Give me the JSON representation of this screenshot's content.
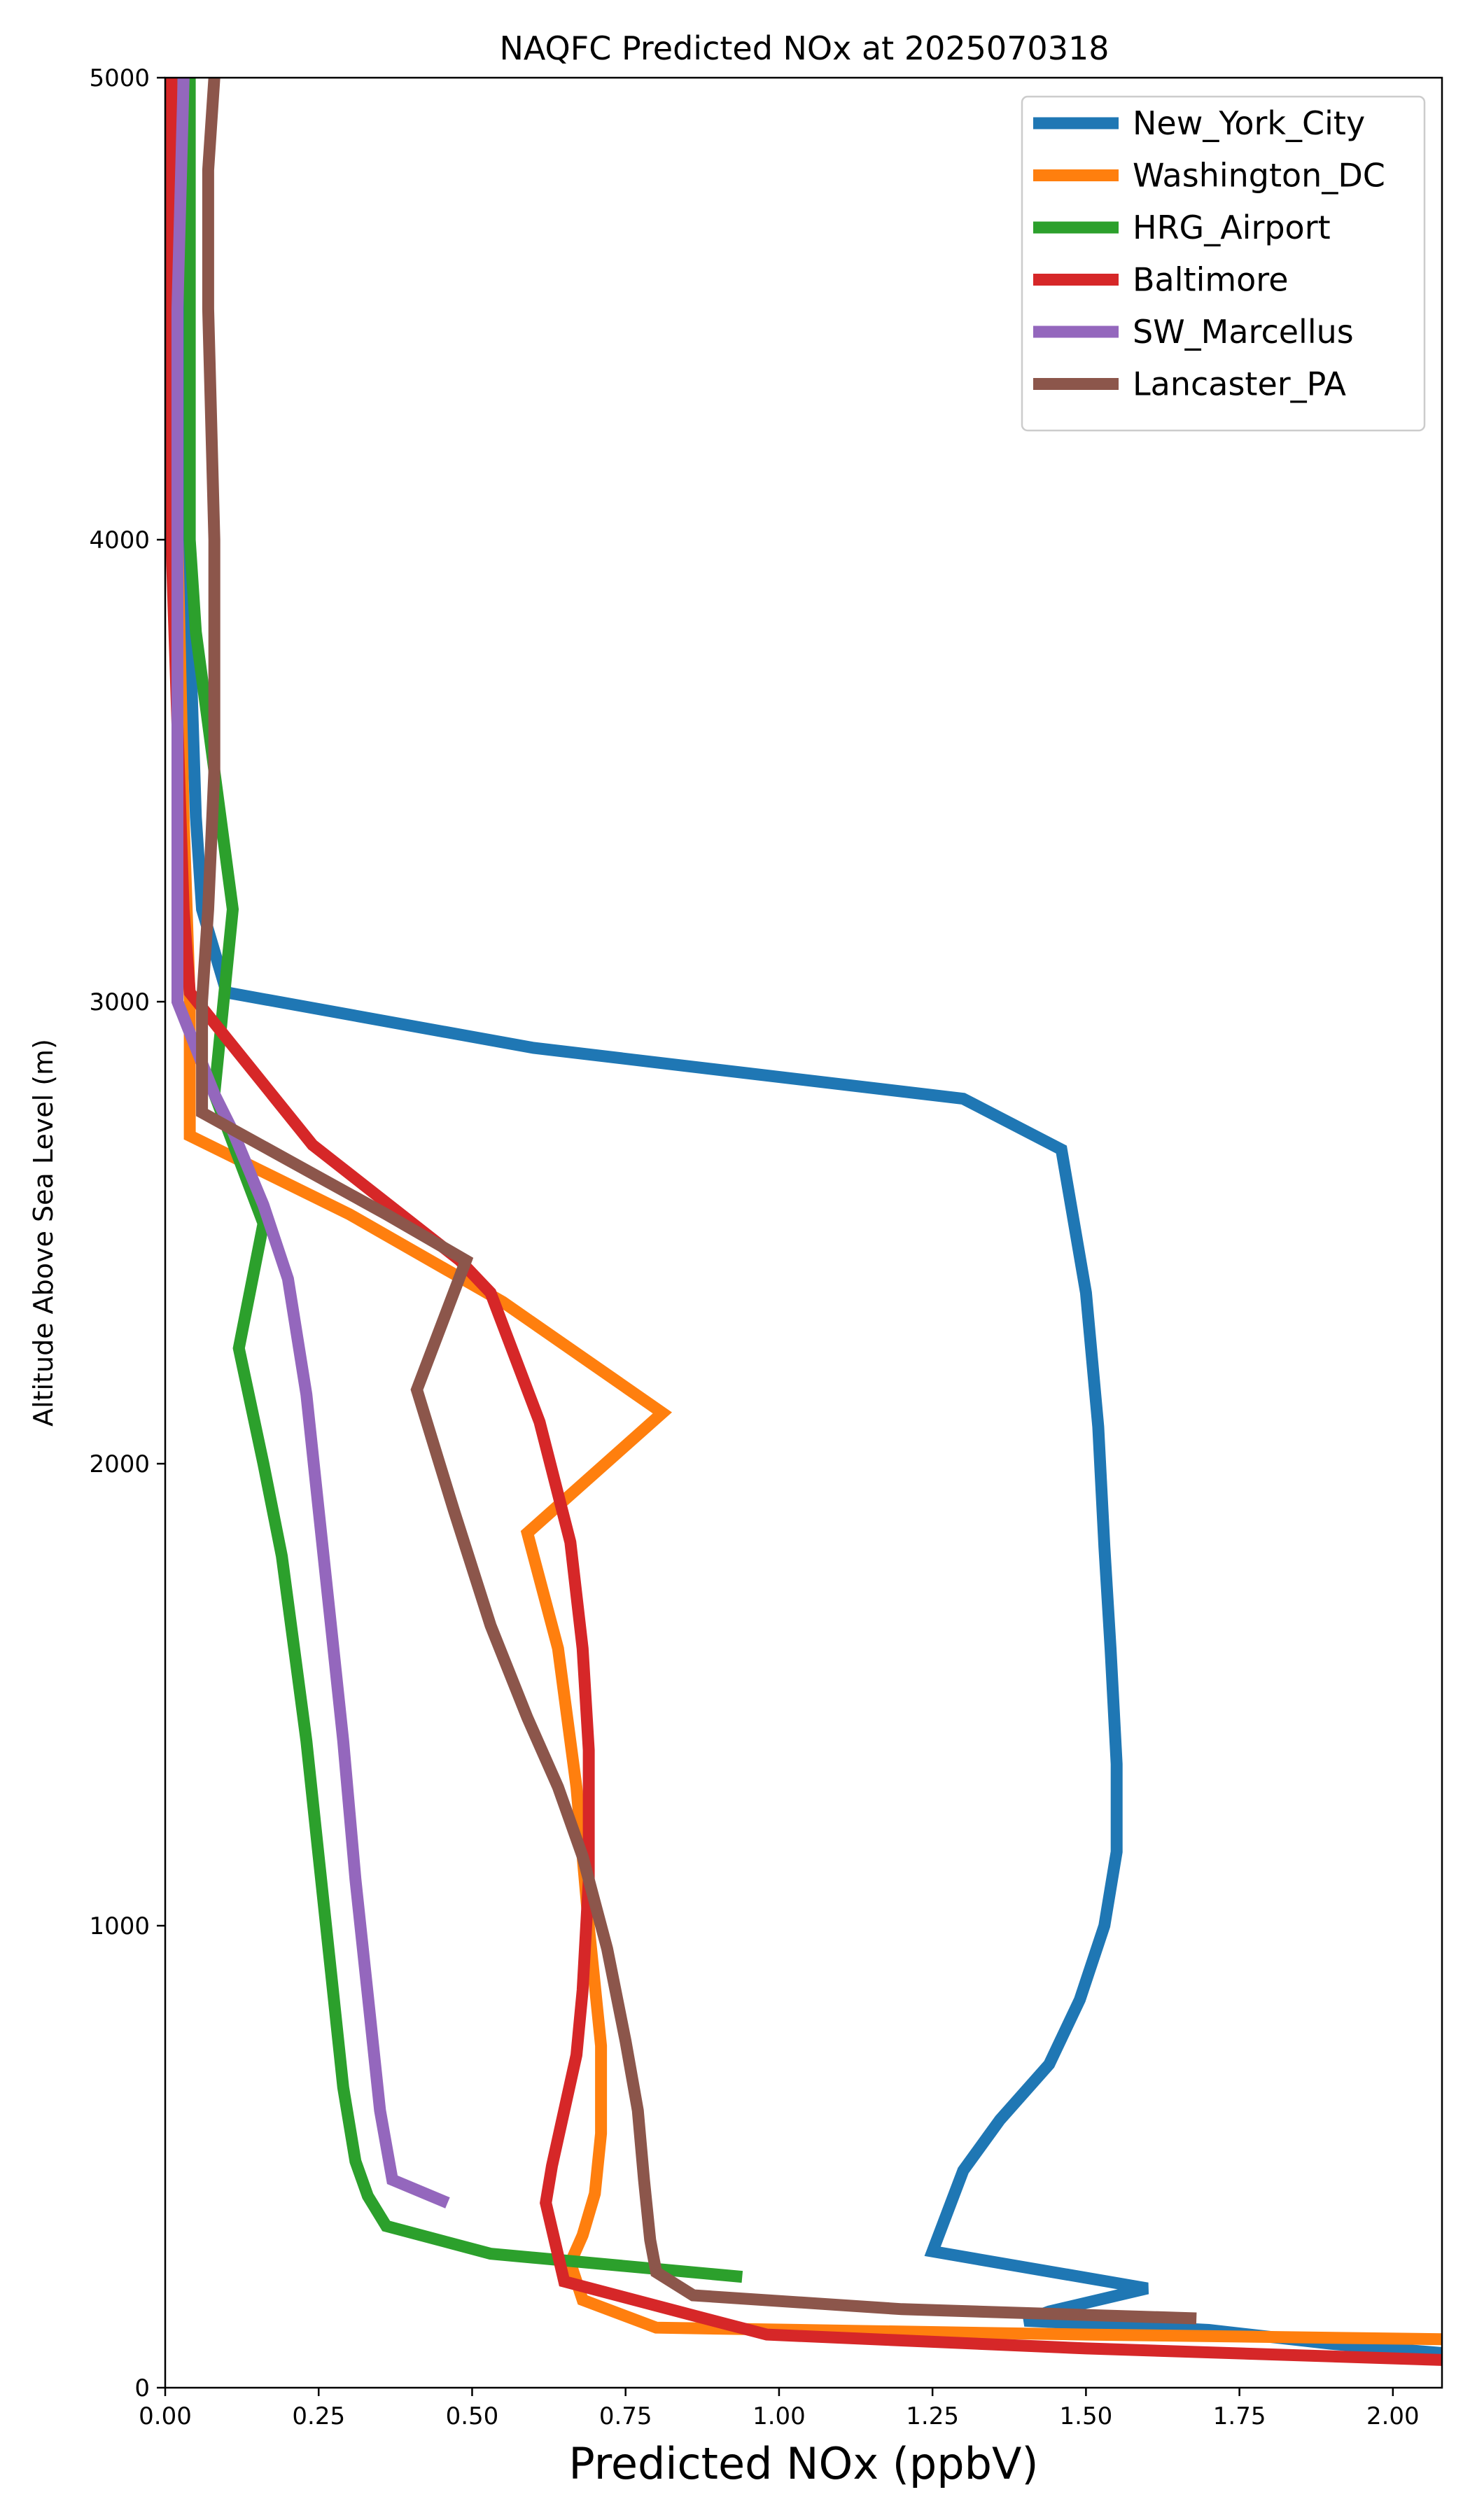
{
  "chart_data": {
    "type": "line",
    "title": "NAQFC Predicted NOx at 2025070318",
    "xlabel": "Predicted NOx (ppbV)",
    "ylabel": "Altitude Above Sea Level (m)",
    "xlim": [
      0,
      2.08
    ],
    "ylim": [
      0,
      5000
    ],
    "xticks": [
      0.0,
      0.25,
      0.5,
      0.75,
      1.0,
      1.25,
      1.5,
      1.75,
      2.0
    ],
    "xtick_labels": [
      "0.00",
      "0.25",
      "0.50",
      "0.75",
      "1.00",
      "1.25",
      "1.50",
      "1.75",
      "2.00"
    ],
    "yticks": [
      0,
      1000,
      2000,
      3000,
      4000,
      5000
    ],
    "ytick_labels": [
      "0",
      "1000",
      "2000",
      "3000",
      "4000",
      "5000"
    ],
    "grid": false,
    "legend_position": "top-right",
    "series": [
      {
        "name": "New_York_City",
        "color": "#1f77b4",
        "points": [
          [
            2.08,
            75
          ],
          [
            1.9,
            95
          ],
          [
            1.7,
            125
          ],
          [
            1.4,
            145
          ],
          [
            1.44,
            165
          ],
          [
            1.6,
            215
          ],
          [
            1.25,
            295
          ],
          [
            1.3,
            470
          ],
          [
            1.36,
            580
          ],
          [
            1.44,
            700
          ],
          [
            1.49,
            840
          ],
          [
            1.53,
            1000
          ],
          [
            1.55,
            1160
          ],
          [
            1.55,
            1350
          ],
          [
            1.54,
            1600
          ],
          [
            1.53,
            1820
          ],
          [
            1.52,
            2080
          ],
          [
            1.5,
            2370
          ],
          [
            1.46,
            2680
          ],
          [
            1.3,
            2790
          ],
          [
            0.6,
            2900
          ],
          [
            0.1,
            3020
          ],
          [
            0.06,
            3200
          ],
          [
            0.05,
            3400
          ],
          [
            0.04,
            3800
          ],
          [
            0.03,
            4200
          ],
          [
            0.02,
            4600
          ],
          [
            0.02,
            5000
          ]
        ]
      },
      {
        "name": "Washington_DC",
        "color": "#ff7f0e",
        "points": [
          [
            2.08,
            105
          ],
          [
            1.5,
            115
          ],
          [
            0.8,
            130
          ],
          [
            0.68,
            190
          ],
          [
            0.66,
            270
          ],
          [
            0.68,
            330
          ],
          [
            0.7,
            420
          ],
          [
            0.71,
            550
          ],
          [
            0.71,
            740
          ],
          [
            0.69,
            1000
          ],
          [
            0.67,
            1300
          ],
          [
            0.64,
            1600
          ],
          [
            0.59,
            1850
          ],
          [
            0.81,
            2110
          ],
          [
            0.55,
            2350
          ],
          [
            0.3,
            2540
          ],
          [
            0.04,
            2710
          ],
          [
            0.04,
            3000
          ],
          [
            0.03,
            3400
          ],
          [
            0.02,
            4000
          ],
          [
            0.01,
            4500
          ],
          [
            0.01,
            5000
          ]
        ]
      },
      {
        "name": "HRG_Airport",
        "color": "#2ca02c",
        "points": [
          [
            0.94,
            240
          ],
          [
            0.53,
            290
          ],
          [
            0.36,
            350
          ],
          [
            0.33,
            415
          ],
          [
            0.31,
            490
          ],
          [
            0.29,
            650
          ],
          [
            0.27,
            900
          ],
          [
            0.25,
            1150
          ],
          [
            0.23,
            1400
          ],
          [
            0.21,
            1600
          ],
          [
            0.19,
            1800
          ],
          [
            0.16,
            2000
          ],
          [
            0.12,
            2250
          ],
          [
            0.16,
            2520
          ],
          [
            0.08,
            2800
          ],
          [
            0.11,
            3200
          ],
          [
            0.08,
            3500
          ],
          [
            0.05,
            3800
          ],
          [
            0.04,
            4000
          ],
          [
            0.04,
            4500
          ],
          [
            0.04,
            5000
          ]
        ]
      },
      {
        "name": "Baltimore",
        "color": "#d62728",
        "points": [
          [
            2.08,
            60
          ],
          [
            1.5,
            85
          ],
          [
            0.98,
            115
          ],
          [
            0.85,
            160
          ],
          [
            0.65,
            230
          ],
          [
            0.62,
            400
          ],
          [
            0.63,
            480
          ],
          [
            0.65,
            600
          ],
          [
            0.67,
            720
          ],
          [
            0.68,
            860
          ],
          [
            0.69,
            1100
          ],
          [
            0.69,
            1380
          ],
          [
            0.68,
            1600
          ],
          [
            0.66,
            1830
          ],
          [
            0.61,
            2090
          ],
          [
            0.53,
            2370
          ],
          [
            0.48,
            2440
          ],
          [
            0.24,
            2690
          ],
          [
            0.04,
            3020
          ],
          [
            0.03,
            3200
          ],
          [
            0.02,
            3600
          ],
          [
            0.01,
            4000
          ],
          [
            0.01,
            4500
          ],
          [
            0.01,
            5000
          ]
        ]
      },
      {
        "name": "SW_Marcellus",
        "color": "#9467bd",
        "points": [
          [
            0.46,
            400
          ],
          [
            0.37,
            450
          ],
          [
            0.35,
            600
          ],
          [
            0.33,
            850
          ],
          [
            0.31,
            1100
          ],
          [
            0.29,
            1400
          ],
          [
            0.27,
            1650
          ],
          [
            0.25,
            1900
          ],
          [
            0.23,
            2150
          ],
          [
            0.2,
            2400
          ],
          [
            0.16,
            2560
          ],
          [
            0.11,
            2720
          ],
          [
            0.08,
            2800
          ],
          [
            0.05,
            2900
          ],
          [
            0.02,
            3000
          ],
          [
            0.02,
            3200
          ],
          [
            0.02,
            3600
          ],
          [
            0.02,
            4000
          ],
          [
            0.02,
            4500
          ],
          [
            0.03,
            5000
          ]
        ]
      },
      {
        "name": "Lancaster_PA",
        "color": "#8c564b",
        "points": [
          [
            1.68,
            150
          ],
          [
            1.2,
            170
          ],
          [
            0.86,
            200
          ],
          [
            0.8,
            250
          ],
          [
            0.79,
            320
          ],
          [
            0.78,
            450
          ],
          [
            0.77,
            600
          ],
          [
            0.75,
            750
          ],
          [
            0.72,
            950
          ],
          [
            0.68,
            1150
          ],
          [
            0.64,
            1300
          ],
          [
            0.59,
            1450
          ],
          [
            0.53,
            1650
          ],
          [
            0.47,
            1900
          ],
          [
            0.41,
            2160
          ],
          [
            0.49,
            2440
          ],
          [
            0.36,
            2540
          ],
          [
            0.06,
            2760
          ],
          [
            0.06,
            3000
          ],
          [
            0.07,
            3200
          ],
          [
            0.08,
            3500
          ],
          [
            0.08,
            3800
          ],
          [
            0.08,
            4000
          ],
          [
            0.07,
            4500
          ],
          [
            0.07,
            4800
          ],
          [
            0.08,
            5000
          ]
        ]
      }
    ]
  }
}
